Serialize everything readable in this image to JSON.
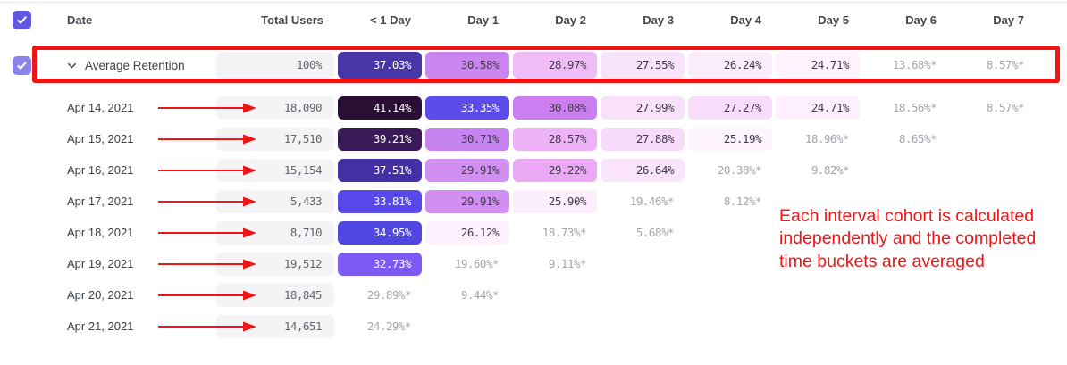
{
  "table": {
    "columns": [
      "Date",
      "Total Users",
      "< 1 Day",
      "Day 1",
      "Day 2",
      "Day 3",
      "Day 4",
      "Day 5",
      "Day 6",
      "Day 7"
    ],
    "header_checkbox_checked": true,
    "average_row": {
      "label": "Average Retention",
      "checkbox_checked": true,
      "total": "100%",
      "cells": [
        {
          "v": "37.03%",
          "bg": "#4836a6",
          "fg": "#ffffff"
        },
        {
          "v": "30.58%",
          "bg": "#ca86f0"
        },
        {
          "v": "28.97%",
          "bg": "#f0bcf7"
        },
        {
          "v": "27.55%",
          "bg": "#f9e3fb"
        },
        {
          "v": "26.24%",
          "bg": "#fcedfd"
        },
        {
          "v": "24.71%",
          "bg": "#fdf2fe"
        },
        {
          "v": "13.68%*"
        },
        {
          "v": "8.57%*"
        }
      ]
    },
    "rows": [
      {
        "date": "Apr 14, 2021",
        "total": "18,090",
        "cells": [
          {
            "v": "41.14%",
            "bg": "#2a0e33",
            "fg": "#ffffff"
          },
          {
            "v": "33.35%",
            "bg": "#5c4ceb",
            "fg": "#ffffff"
          },
          {
            "v": "30.08%",
            "bg": "#cc7df0"
          },
          {
            "v": "27.99%",
            "bg": "#f9e0fb"
          },
          {
            "v": "27.27%",
            "bg": "#f8ddfa"
          },
          {
            "v": "24.71%",
            "bg": "#fdeffe"
          },
          {
            "v": "18.56%*"
          },
          {
            "v": "8.57%*"
          }
        ]
      },
      {
        "date": "Apr 15, 2021",
        "total": "17,510",
        "cells": [
          {
            "v": "39.21%",
            "bg": "#391a57",
            "fg": "#ffffff"
          },
          {
            "v": "30.71%",
            "bg": "#c684f0"
          },
          {
            "v": "28.57%",
            "bg": "#eeb3f6"
          },
          {
            "v": "27.88%",
            "bg": "#f7dcfa"
          },
          {
            "v": "25.19%",
            "bg": "#fdf4fe"
          },
          {
            "v": "18.96%*"
          },
          {
            "v": "8.65%*"
          }
        ]
      },
      {
        "date": "Apr 16, 2021",
        "total": "15,154",
        "cells": [
          {
            "v": "37.51%",
            "bg": "#4430a4",
            "fg": "#ffffff"
          },
          {
            "v": "29.91%",
            "bg": "#d18ff2"
          },
          {
            "v": "29.22%",
            "bg": "#eba8f5"
          },
          {
            "v": "26.64%",
            "bg": "#f9e4fb"
          },
          {
            "v": "20.38%*"
          },
          {
            "v": "9.82%*"
          }
        ]
      },
      {
        "date": "Apr 17, 2021",
        "total": "5,433",
        "cells": [
          {
            "v": "33.81%",
            "bg": "#5948e9",
            "fg": "#ffffff"
          },
          {
            "v": "29.91%",
            "bg": "#d18ff2"
          },
          {
            "v": "25.90%",
            "bg": "#fceefd"
          },
          {
            "v": "19.46%*"
          },
          {
            "v": "8.12%*"
          }
        ]
      },
      {
        "date": "Apr 18, 2021",
        "total": "8,710",
        "cells": [
          {
            "v": "34.95%",
            "bg": "#5246e0",
            "fg": "#ffffff"
          },
          {
            "v": "26.12%",
            "bg": "#fdf1fe"
          },
          {
            "v": "18.73%*"
          },
          {
            "v": "5.68%*"
          }
        ]
      },
      {
        "date": "Apr 19, 2021",
        "total": "19,512",
        "cells": [
          {
            "v": "32.73%",
            "bg": "#7d5af3",
            "fg": "#ffffff"
          },
          {
            "v": "19.60%*"
          },
          {
            "v": "9.11%*"
          }
        ]
      },
      {
        "date": "Apr 20, 2021",
        "total": "18,845",
        "cells": [
          {
            "v": "29.89%*"
          },
          {
            "v": "9.44%*"
          }
        ]
      },
      {
        "date": "Apr 21, 2021",
        "total": "14,651",
        "cells": [
          {
            "v": "24.29%*"
          }
        ]
      }
    ]
  },
  "annotation": {
    "note": "Each interval cohort is calculated independently and the completed time buckets are averaged",
    "red": "#f01414"
  },
  "colors": {
    "checkbox_header": "#6157e2",
    "checkbox_average": "#8b82ea",
    "total_cell_bg": "#f4f3f5"
  }
}
